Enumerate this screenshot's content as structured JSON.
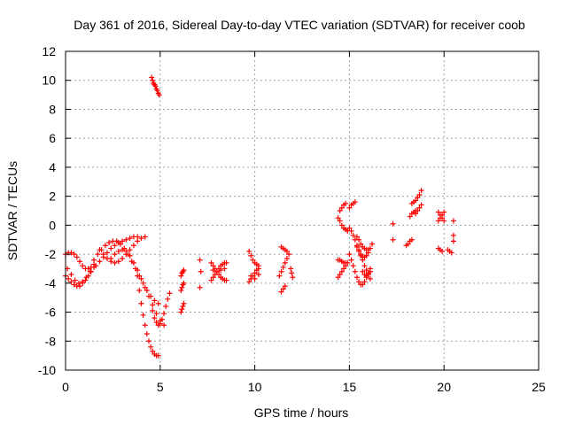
{
  "chart_data": {
    "type": "scatter",
    "title": "Day 361 of 2016, Sidereal Day-to-day VTEC variation (SDTVAR) for receiver coob",
    "xlabel": "GPS time / hours",
    "ylabel": "SDTVAR / TECUs",
    "xlim": [
      0,
      25
    ],
    "ylim": [
      -10,
      12
    ],
    "xticks": [
      0,
      5,
      10,
      15,
      20,
      25
    ],
    "yticks": [
      -10,
      -8,
      -6,
      -4,
      -2,
      0,
      2,
      4,
      6,
      8,
      10,
      12
    ],
    "grid": true,
    "marker": "+",
    "color": "#ff0000",
    "segments": [
      {
        "x": [
          0.0,
          0.15,
          0.3,
          0.45,
          0.6,
          0.75,
          0.9,
          1.05,
          1.2,
          1.35,
          1.5
        ],
        "y": [
          -3.5,
          -3.7,
          -3.9,
          -4.1,
          -4.2,
          -4.2,
          -4.0,
          -3.8,
          -3.5,
          -3.2,
          -2.9
        ]
      },
      {
        "x": [
          0.0,
          0.15,
          0.3,
          0.45,
          0.6,
          0.75,
          0.9,
          1.05,
          1.2,
          1.35,
          1.5
        ],
        "y": [
          -2.0,
          -1.9,
          -1.9,
          -2.0,
          -2.2,
          -2.5,
          -2.8,
          -3.0,
          -3.0,
          -2.9,
          -2.7
        ]
      },
      {
        "x": [
          0.1,
          0.3,
          0.5,
          0.7,
          0.9,
          1.1,
          1.3
        ],
        "y": [
          -3.0,
          -3.4,
          -3.8,
          -4.0,
          -3.9,
          -3.6,
          -3.2
        ]
      },
      {
        "x": [
          1.5,
          1.7,
          1.9,
          2.1,
          2.3,
          2.5,
          2.7,
          2.9,
          3.1,
          3.3,
          3.5,
          3.7,
          3.9,
          4.1,
          4.3,
          4.5,
          4.7,
          4.9
        ],
        "y": [
          -2.4,
          -2.0,
          -1.7,
          -1.4,
          -1.2,
          -1.1,
          -1.1,
          -1.3,
          -1.6,
          -2.0,
          -2.5,
          -3.0,
          -3.5,
          -4.0,
          -4.5,
          -4.9,
          -5.2,
          -5.4
        ]
      },
      {
        "x": [
          1.6,
          1.8,
          2.0,
          2.2,
          2.4,
          2.6,
          2.8,
          3.0,
          3.2,
          3.4,
          3.6,
          3.8
        ],
        "y": [
          -2.8,
          -2.5,
          -2.2,
          -1.9,
          -1.6,
          -1.4,
          -1.2,
          -1.1,
          -1.0,
          -0.9,
          -0.8,
          -0.8
        ]
      },
      {
        "x": [
          1.8,
          2.0,
          2.2,
          2.4,
          2.6,
          2.8,
          3.0,
          3.2,
          3.4,
          3.6,
          3.8,
          4.0,
          4.2
        ],
        "y": [
          -1.7,
          -2.0,
          -2.3,
          -2.5,
          -2.6,
          -2.5,
          -2.3,
          -2.0,
          -1.7,
          -1.4,
          -1.1,
          -0.9,
          -0.8
        ]
      },
      {
        "x": [
          2.4,
          2.6,
          2.8,
          3.0,
          3.2,
          3.4,
          3.6,
          3.8,
          4.0,
          4.2,
          4.4,
          4.6,
          4.8,
          5.0,
          5.2
        ],
        "y": [
          -2.3,
          -2.0,
          -1.8,
          -1.7,
          -1.8,
          -2.1,
          -2.6,
          -3.1,
          -3.7,
          -4.3,
          -4.9,
          -5.5,
          -6.1,
          -6.6,
          -6.9
        ]
      },
      {
        "x": [
          3.8,
          3.9,
          4.0,
          4.1,
          4.2,
          4.3,
          4.4,
          4.5,
          4.6,
          4.7,
          4.8,
          4.9
        ],
        "y": [
          -3.5,
          -4.5,
          -5.4,
          -6.2,
          -6.9,
          -7.5,
          -8.0,
          -8.4,
          -8.7,
          -8.9,
          -9.0,
          -9.0
        ]
      },
      {
        "x": [
          4.6,
          4.7,
          4.8,
          4.9,
          5.0,
          5.1,
          5.2,
          5.3,
          5.4,
          5.5
        ],
        "y": [
          -5.9,
          -6.4,
          -6.7,
          -6.9,
          -6.8,
          -6.5,
          -6.1,
          -5.6,
          -5.1,
          -4.7
        ]
      },
      {
        "x": [
          4.55,
          4.6,
          4.65,
          4.7,
          4.75,
          4.8,
          4.85,
          4.9,
          4.95
        ],
        "y": [
          10.2,
          10.0,
          9.8,
          9.7,
          9.6,
          9.4,
          9.3,
          9.1,
          9.0
        ]
      },
      {
        "x": [
          6.1,
          6.15,
          6.2,
          6.25
        ],
        "y": [
          -3.5,
          -3.3,
          -3.2,
          -3.1
        ]
      },
      {
        "x": [
          6.1,
          6.15,
          6.2,
          6.25
        ],
        "y": [
          -4.5,
          -4.3,
          -4.1,
          -4.0
        ]
      },
      {
        "x": [
          6.1,
          6.15,
          6.2,
          6.25
        ],
        "y": [
          -6.0,
          -5.8,
          -5.6,
          -5.4
        ]
      },
      {
        "x": [
          7.1,
          7.15,
          7.1
        ],
        "y": [
          -2.4,
          -3.2,
          -4.3
        ]
      },
      {
        "x": [
          7.7,
          7.8,
          7.9,
          8.0,
          8.1,
          8.2,
          8.3,
          8.4,
          8.5
        ],
        "y": [
          -2.6,
          -2.8,
          -3.0,
          -3.2,
          -3.4,
          -3.6,
          -3.7,
          -3.8,
          -3.8
        ]
      },
      {
        "x": [
          7.7,
          7.8,
          7.9,
          8.0,
          8.1,
          8.2,
          8.3,
          8.4,
          8.5
        ],
        "y": [
          -3.8,
          -3.6,
          -3.4,
          -3.2,
          -3.0,
          -2.8,
          -2.7,
          -2.6,
          -2.6
        ]
      },
      {
        "x": [
          7.8,
          8.0,
          8.2,
          8.4
        ],
        "y": [
          -3.1,
          -3.2,
          -3.1,
          -3.0
        ]
      },
      {
        "x": [
          9.7,
          9.8,
          9.9,
          10.0,
          10.1,
          10.2
        ],
        "y": [
          -1.8,
          -2.1,
          -2.4,
          -2.6,
          -2.7,
          -2.8
        ]
      },
      {
        "x": [
          9.7,
          9.8,
          9.9,
          10.0,
          10.1,
          10.2
        ],
        "y": [
          -3.9,
          -3.7,
          -3.5,
          -3.3,
          -3.1,
          -3.0
        ]
      },
      {
        "x": [
          9.8,
          10.0,
          10.2
        ],
        "y": [
          -3.5,
          -3.7,
          -3.4
        ]
      },
      {
        "x": [
          11.3,
          11.4,
          11.5,
          11.6,
          11.7,
          11.8
        ],
        "y": [
          -3.5,
          -3.2,
          -2.9,
          -2.6,
          -2.3,
          -2.0
        ]
      },
      {
        "x": [
          11.4,
          11.5,
          11.6
        ],
        "y": [
          -4.6,
          -4.4,
          -4.2
        ]
      },
      {
        "x": [
          11.4,
          11.5,
          11.6,
          11.7
        ],
        "y": [
          -1.5,
          -1.6,
          -1.7,
          -1.8
        ]
      },
      {
        "x": [
          11.9,
          11.95,
          12.0
        ],
        "y": [
          -3.0,
          -3.3,
          -3.6
        ]
      },
      {
        "x": [
          14.4,
          14.5,
          14.6,
          14.7,
          14.8,
          14.9
        ],
        "y": [
          0.5,
          0.3,
          0.0,
          -0.2,
          -0.3,
          -0.4
        ]
      },
      {
        "x": [
          14.4,
          14.5,
          14.6,
          14.7,
          14.8,
          14.9
        ],
        "y": [
          -3.6,
          -3.4,
          -3.2,
          -3.0,
          -2.8,
          -2.6
        ]
      },
      {
        "x": [
          14.4,
          14.5,
          14.6,
          14.7,
          14.8
        ],
        "y": [
          -2.4,
          -2.4,
          -2.5,
          -2.6,
          -2.6
        ]
      },
      {
        "x": [
          14.5,
          14.6,
          14.7,
          14.8
        ],
        "y": [
          1.0,
          1.2,
          1.4,
          1.5
        ]
      },
      {
        "x": [
          15.0,
          15.1,
          15.2,
          15.3,
          15.4,
          15.5,
          15.6,
          15.7,
          15.8,
          15.9,
          16.0,
          16.1
        ],
        "y": [
          -0.2,
          -0.4,
          -0.7,
          -1.0,
          -1.4,
          -1.7,
          -2.1,
          -2.4,
          -2.8,
          -3.1,
          -3.4,
          -3.7
        ]
      },
      {
        "x": [
          15.0,
          15.1,
          15.2,
          15.3,
          15.4,
          15.5,
          15.6,
          15.7,
          15.8,
          15.9,
          16.0,
          16.1
        ],
        "y": [
          -2.0,
          -2.4,
          -2.8,
          -3.2,
          -3.6,
          -3.9,
          -4.1,
          -4.1,
          -3.9,
          -3.6,
          -3.3,
          -3.0
        ]
      },
      {
        "x": [
          15.0,
          15.1,
          15.2,
          15.3
        ],
        "y": [
          1.2,
          1.4,
          1.5,
          1.6
        ]
      },
      {
        "x": [
          15.4,
          15.5,
          15.6,
          15.7,
          15.8,
          15.9,
          16.0
        ],
        "y": [
          -0.8,
          -1.0,
          -1.3,
          -1.5,
          -1.6,
          -1.7,
          -1.7
        ]
      },
      {
        "x": [
          15.4,
          15.5,
          15.6,
          15.7,
          15.8,
          15.9,
          16.0,
          16.1,
          16.2
        ],
        "y": [
          -1.5,
          -1.8,
          -2.0,
          -2.2,
          -2.2,
          -2.1,
          -1.9,
          -1.6,
          -1.3
        ]
      },
      {
        "x": [
          15.7,
          15.8,
          15.9,
          16.0,
          16.1
        ],
        "y": [
          -3.2,
          -3.4,
          -3.5,
          -3.4,
          -3.2
        ]
      },
      {
        "x": [
          17.3,
          17.3
        ],
        "y": [
          0.1,
          -1.0
        ]
      },
      {
        "x": [
          18.2,
          18.3,
          18.4,
          18.5
        ],
        "y": [
          0.6,
          0.8,
          0.9,
          1.0
        ]
      },
      {
        "x": [
          18.3,
          18.4,
          18.5,
          18.6
        ],
        "y": [
          1.5,
          1.6,
          1.7,
          1.9
        ]
      },
      {
        "x": [
          18.5,
          18.6,
          18.7,
          18.8
        ],
        "y": [
          0.8,
          1.0,
          1.2,
          1.4
        ]
      },
      {
        "x": [
          18.7,
          18.8
        ],
        "y": [
          2.1,
          2.4
        ]
      },
      {
        "x": [
          18.0,
          18.1,
          18.2,
          18.3
        ],
        "y": [
          -1.4,
          -1.3,
          -1.1,
          -1.0
        ]
      },
      {
        "x": [
          19.7,
          19.8,
          19.9,
          20.0
        ],
        "y": [
          0.3,
          0.5,
          0.7,
          0.9
        ]
      },
      {
        "x": [
          19.7,
          19.8,
          19.9,
          20.0
        ],
        "y": [
          0.9,
          0.7,
          0.5,
          0.3
        ]
      },
      {
        "x": [
          19.7,
          19.8,
          19.9
        ],
        "y": [
          -1.6,
          -1.7,
          -1.8
        ]
      },
      {
        "x": [
          20.2,
          20.3,
          20.4
        ],
        "y": [
          -1.7,
          -1.8,
          -1.9
        ]
      },
      {
        "x": [
          20.5,
          20.5,
          20.5
        ],
        "y": [
          0.3,
          -0.7,
          -1.1
        ]
      }
    ]
  }
}
